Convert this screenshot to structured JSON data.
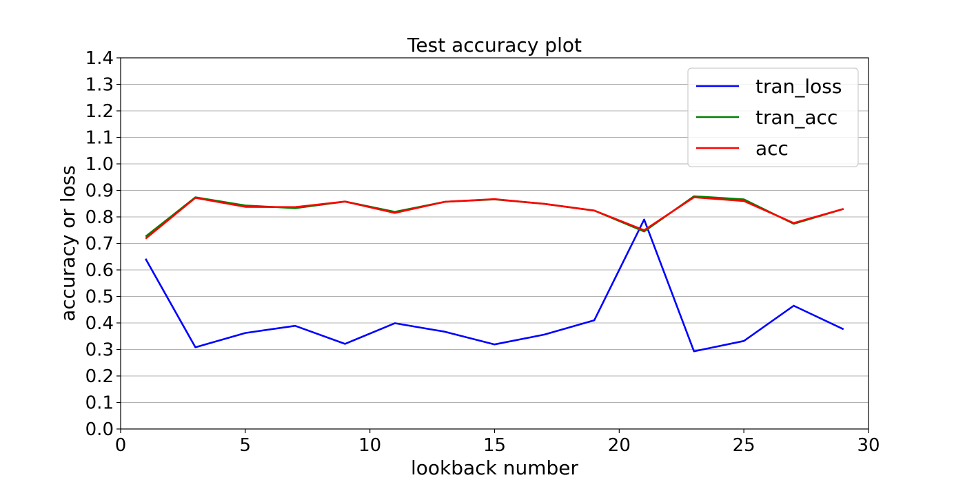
{
  "chart_data": {
    "type": "line",
    "title": "Test accuracy plot",
    "xlabel": "lookback number",
    "ylabel": "accuracy or loss",
    "xlim": [
      0,
      30
    ],
    "ylim": [
      0.0,
      1.4
    ],
    "xticks": [
      "0",
      "5",
      "10",
      "15",
      "20",
      "25",
      "30"
    ],
    "xtick_values": [
      0,
      5,
      10,
      15,
      20,
      25,
      30
    ],
    "yticks": [
      "0.0",
      "0.1",
      "0.2",
      "0.3",
      "0.4",
      "0.5",
      "0.6",
      "0.7",
      "0.8",
      "0.9",
      "1.0",
      "1.1",
      "1.2",
      "1.3",
      "1.4"
    ],
    "ytick_values": [
      0.0,
      0.1,
      0.2,
      0.3,
      0.4,
      0.5,
      0.6,
      0.7,
      0.8,
      0.9,
      1.0,
      1.1,
      1.2,
      1.3,
      1.4
    ],
    "grid": "horizontal",
    "legend_position": "top-right",
    "x": [
      1,
      3,
      5,
      7,
      9,
      11,
      13,
      15,
      17,
      19,
      21,
      23,
      25,
      27,
      29
    ],
    "series": [
      {
        "name": "tran_loss",
        "color": "#0000ff",
        "values": [
          0.642,
          0.308,
          0.362,
          0.389,
          0.321,
          0.399,
          0.367,
          0.319,
          0.356,
          0.41,
          0.79,
          0.293,
          0.332,
          0.465,
          0.376
        ]
      },
      {
        "name": "tran_acc",
        "color": "#008000",
        "values": [
          0.726,
          0.874,
          0.843,
          0.833,
          0.858,
          0.819,
          0.857,
          0.866,
          0.849,
          0.824,
          0.745,
          0.878,
          0.866,
          0.774,
          0.83
        ]
      },
      {
        "name": "acc",
        "color": "#ff0000",
        "values": [
          0.718,
          0.872,
          0.838,
          0.837,
          0.858,
          0.815,
          0.857,
          0.867,
          0.849,
          0.824,
          0.75,
          0.874,
          0.86,
          0.777,
          0.83
        ]
      }
    ]
  }
}
